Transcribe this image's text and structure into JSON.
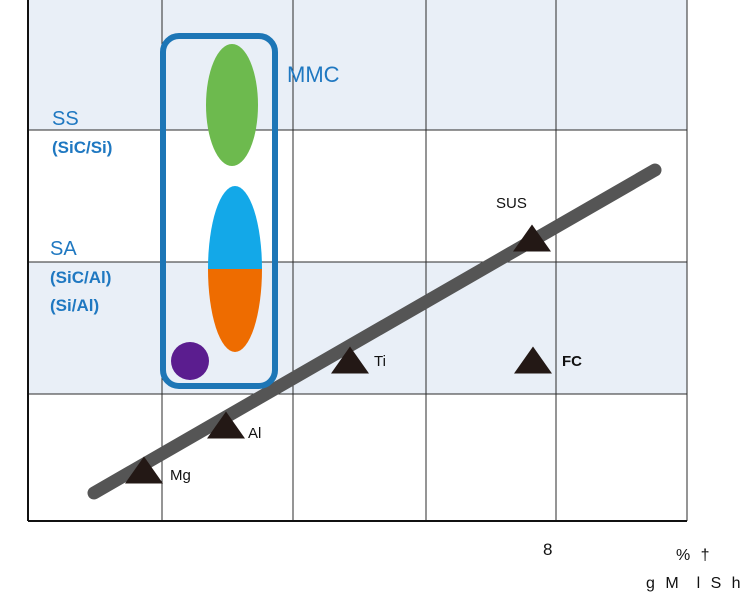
{
  "chart_data": {
    "type": "scatter",
    "x_ticks": [
      {
        "value": 8,
        "label": "8"
      }
    ],
    "x_axis_note": [
      "% †",
      "g M  l S h"
    ],
    "grid": true,
    "band_colors": [
      "#e9eff7",
      "#ffffff"
    ],
    "groups": {
      "ss": {
        "title": "SS",
        "sub": "(SiC/Si)",
        "color": "#6dba4e"
      },
      "sa": {
        "title": "SA",
        "sub1": "(SiC/Al)",
        "sub2": "(Si/Al)",
        "color_top": "#13a8e8",
        "color_bottom": "#ee6c00"
      },
      "extra_color": "#5b1d8f",
      "mmc_label": "MMC",
      "mmc_box_color": "#1d76b6"
    },
    "materials": [
      {
        "name": "Mg",
        "bold": false
      },
      {
        "name": "Al",
        "bold": false
      },
      {
        "name": "Ti",
        "bold": false
      },
      {
        "name": "SUS",
        "bold": false
      },
      {
        "name": "FC",
        "bold": true
      }
    ],
    "trend_color": "#555555",
    "marker_color": "#231815"
  }
}
